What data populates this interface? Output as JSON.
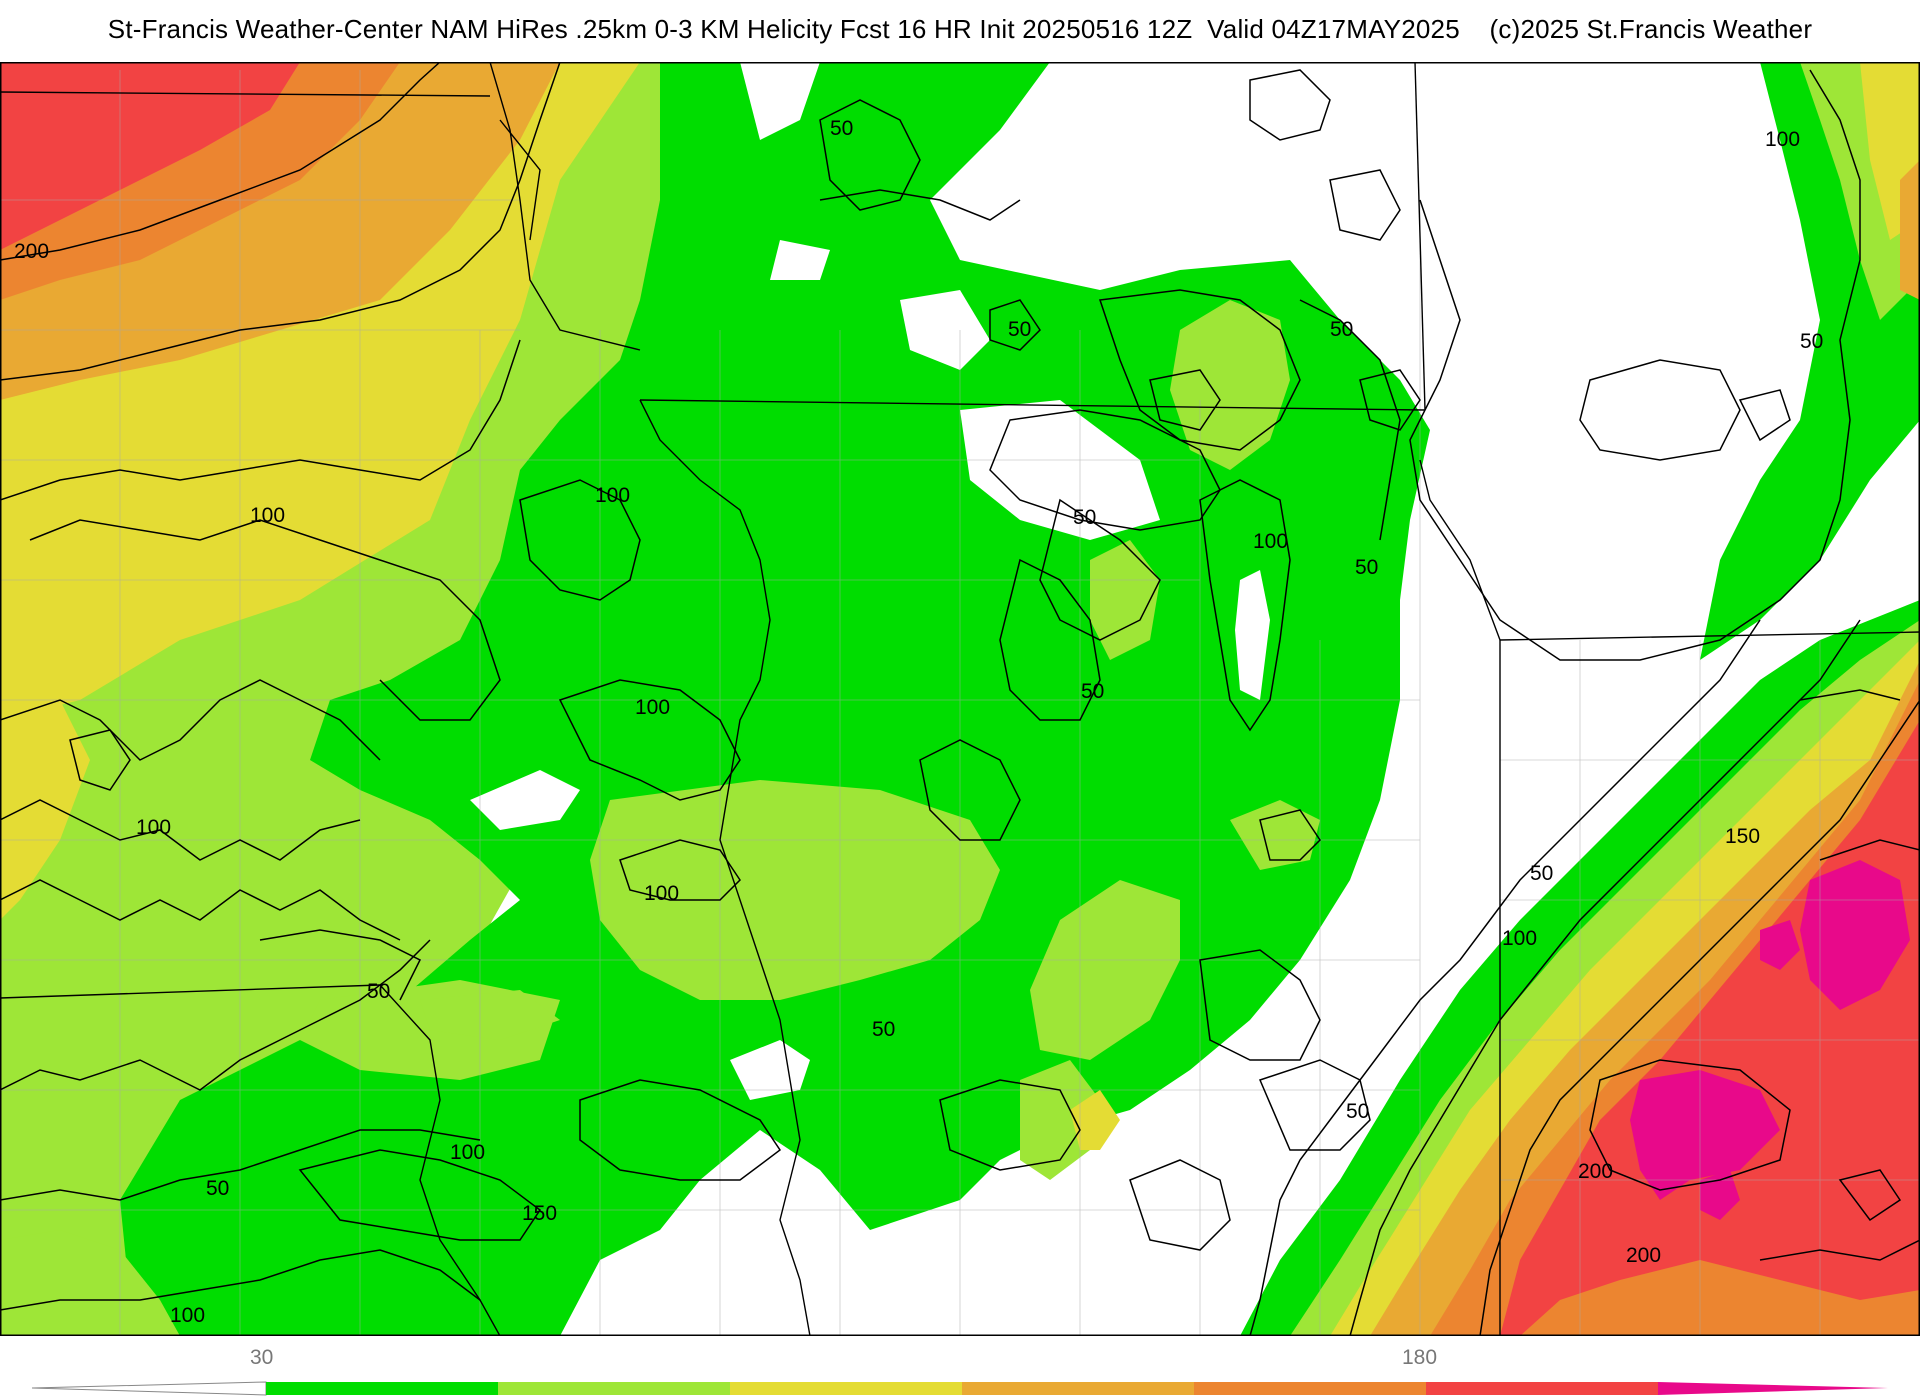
{
  "header": {
    "title": "St-Francis Weather-Center NAM HiRes .25km 0-3 KM Helicity Fcst 16 HR Init 20250516 12Z  Valid 04Z17MAY2025    (c)2025 St.Francis Weather"
  },
  "colors": {
    "c30_60": "#00dd00",
    "c60_90": "#9ee637",
    "c90_120": "#e4dc34",
    "c120_150": "#e9a933",
    "c150_180": "#ec8530",
    "c180_210": "#f24343",
    "c210_240": "#e8098a",
    "background": "#ffffff"
  },
  "contour_labels": [
    {
      "id": "c-200-a",
      "text": "200"
    },
    {
      "id": "c-100-a",
      "text": "100"
    },
    {
      "id": "c-100-b",
      "text": "100"
    },
    {
      "id": "c-100-c",
      "text": "100"
    },
    {
      "id": "c-100-d",
      "text": "100"
    },
    {
      "id": "c-100-e",
      "text": "100"
    },
    {
      "id": "c-100-f",
      "text": "100"
    },
    {
      "id": "c-100-g",
      "text": "100"
    },
    {
      "id": "c-100-h",
      "text": "100"
    },
    {
      "id": "c-100-i",
      "text": "100"
    },
    {
      "id": "c-100-j",
      "text": "100"
    },
    {
      "id": "c-50-a",
      "text": "50"
    },
    {
      "id": "c-50-b",
      "text": "50"
    },
    {
      "id": "c-50-c",
      "text": "50"
    },
    {
      "id": "c-50-d",
      "text": "50"
    },
    {
      "id": "c-50-e",
      "text": "50"
    },
    {
      "id": "c-50-f",
      "text": "50"
    },
    {
      "id": "c-50-g",
      "text": "50"
    },
    {
      "id": "c-50-h",
      "text": "50"
    },
    {
      "id": "c-50-i",
      "text": "50"
    },
    {
      "id": "c-50-j",
      "text": "50"
    },
    {
      "id": "c-50-k",
      "text": "50"
    },
    {
      "id": "c-50-l",
      "text": "50"
    },
    {
      "id": "c-150-a",
      "text": "150"
    },
    {
      "id": "c-150-b",
      "text": "150"
    },
    {
      "id": "c-200-b",
      "text": "200"
    },
    {
      "id": "c-200-c",
      "text": "200"
    }
  ],
  "colorbar": {
    "tick_labels": [
      "30",
      "180"
    ]
  }
}
